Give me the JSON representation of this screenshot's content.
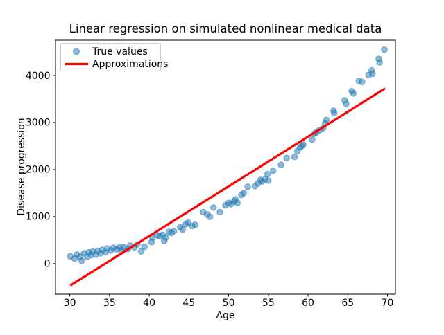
{
  "chart_data": {
    "type": "scatter",
    "title": "Linear regression on simulated nonlinear medical data",
    "xlabel": "Age",
    "ylabel": "Disease progression",
    "xlim": [
      28.2,
      71.0
    ],
    "ylim": [
      -650,
      4750
    ],
    "x_ticks": [
      30,
      35,
      40,
      45,
      50,
      55,
      60,
      65,
      70
    ],
    "y_ticks": [
      0,
      1000,
      2000,
      3000,
      4000
    ],
    "grid": false,
    "legend": {
      "position": "upper left",
      "entries": [
        "True values",
        "Approximations"
      ]
    },
    "colors": {
      "scatter": "#1f77b4",
      "line": "#ff0000",
      "legend_border": "#cccccc",
      "spine": "#000000"
    },
    "series": [
      {
        "name": "True values",
        "kind": "scatter",
        "color": "#1f77b4",
        "alpha": 0.5,
        "points": [
          [
            30.06,
            157
          ],
          [
            30.6,
            107
          ],
          [
            30.9,
            191
          ],
          [
            31.3,
            147
          ],
          [
            31.5,
            59
          ],
          [
            31.8,
            220
          ],
          [
            32.2,
            143
          ],
          [
            32.4,
            240
          ],
          [
            32.7,
            181
          ],
          [
            32.9,
            254
          ],
          [
            33.3,
            191
          ],
          [
            33.5,
            269
          ],
          [
            33.85,
            220
          ],
          [
            34.1,
            290
          ],
          [
            34.5,
            240
          ],
          [
            34.7,
            319
          ],
          [
            35.2,
            279
          ],
          [
            35.5,
            338
          ],
          [
            35.9,
            304
          ],
          [
            36.3,
            353
          ],
          [
            36.5,
            284
          ],
          [
            36.8,
            343
          ],
          [
            37.3,
            309
          ],
          [
            37.6,
            382
          ],
          [
            38.1,
            343
          ],
          [
            38.5,
            407
          ],
          [
            39.0,
            260
          ],
          [
            39.4,
            358
          ],
          [
            40.3,
            456
          ],
          [
            40.4,
            554
          ],
          [
            41.0,
            603
          ],
          [
            41.35,
            578
          ],
          [
            41.7,
            613
          ],
          [
            41.9,
            481
          ],
          [
            42.1,
            554
          ],
          [
            42.5,
            676
          ],
          [
            42.8,
            652
          ],
          [
            43.1,
            691
          ],
          [
            43.9,
            775
          ],
          [
            44.2,
            725
          ],
          [
            44.6,
            838
          ],
          [
            44.9,
            872
          ],
          [
            45.4,
            799
          ],
          [
            45.8,
            824
          ],
          [
            46.8,
            1093
          ],
          [
            47.3,
            1044
          ],
          [
            47.65,
            995
          ],
          [
            48.1,
            1191
          ],
          [
            48.9,
            1093
          ],
          [
            49.6,
            1240
          ],
          [
            50.0,
            1290
          ],
          [
            50.3,
            1265
          ],
          [
            50.7,
            1324
          ],
          [
            50.85,
            1363
          ],
          [
            51.1,
            1290
          ],
          [
            51.6,
            1460
          ],
          [
            51.9,
            1500
          ],
          [
            52.4,
            1632
          ],
          [
            53.3,
            1647
          ],
          [
            53.7,
            1706
          ],
          [
            54.0,
            1779
          ],
          [
            54.2,
            1745
          ],
          [
            54.6,
            1794
          ],
          [
            55.0,
            1765
          ],
          [
            54.9,
            1902
          ],
          [
            55.6,
            1975
          ],
          [
            56.6,
            2098
          ],
          [
            57.3,
            2245
          ],
          [
            58.3,
            2269
          ],
          [
            58.65,
            2392
          ],
          [
            59.0,
            2466
          ],
          [
            59.2,
            2500
          ],
          [
            59.4,
            2529
          ],
          [
            60.5,
            2637
          ],
          [
            60.8,
            2760
          ],
          [
            61.0,
            2784
          ],
          [
            61.4,
            2833
          ],
          [
            61.9,
            2882
          ],
          [
            62.15,
            2980
          ],
          [
            62.3,
            3054
          ],
          [
            63.2,
            3250
          ],
          [
            63.3,
            3201
          ],
          [
            64.6,
            3471
          ],
          [
            64.8,
            3397
          ],
          [
            65.5,
            3666
          ],
          [
            65.7,
            3618
          ],
          [
            66.4,
            3887
          ],
          [
            66.8,
            3863
          ],
          [
            67.6,
            4010
          ],
          [
            68.0,
            4108
          ],
          [
            68.1,
            4034
          ],
          [
            68.9,
            4353
          ],
          [
            69.0,
            4279
          ],
          [
            69.6,
            4549
          ]
        ]
      },
      {
        "name": "Approximations",
        "kind": "line",
        "color": "#ff0000",
        "points": [
          [
            30.06,
            -466
          ],
          [
            69.7,
            3725
          ]
        ]
      }
    ]
  }
}
